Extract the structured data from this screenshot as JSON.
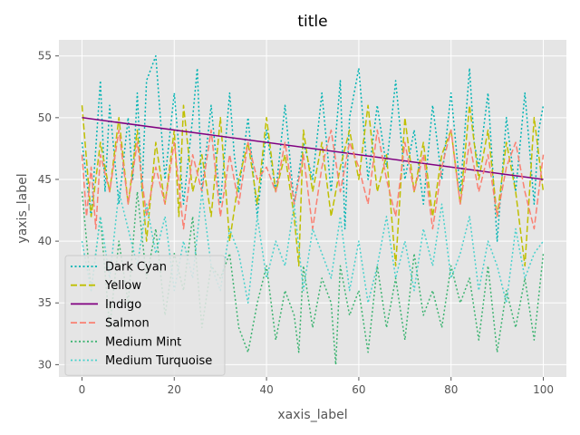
{
  "chart_data": {
    "type": "line",
    "title": "title",
    "xlabel": "xaxis_label",
    "ylabel": "yaxis_label",
    "xlim": [
      -5,
      105
    ],
    "ylim": [
      29,
      56.3
    ],
    "xticks": [
      0,
      20,
      40,
      60,
      80,
      100
    ],
    "yticks": [
      30,
      35,
      40,
      45,
      50,
      55
    ],
    "grid": true,
    "background": "#e5e5e5",
    "legend": {
      "position": "lower-left"
    },
    "series": [
      {
        "name": "Dark Cyan",
        "color": "#00b3b3",
        "dash": "dotted",
        "x": [
          0,
          2,
          4,
          5,
          6,
          8,
          10,
          11,
          12,
          13,
          14,
          16,
          18,
          20,
          22,
          24,
          25,
          26,
          28,
          30,
          32,
          33,
          34,
          36,
          38,
          40,
          42,
          44,
          46,
          48,
          50,
          52,
          54,
          56,
          57,
          58,
          60,
          62,
          64,
          66,
          68,
          70,
          72,
          74,
          76,
          78,
          80,
          82,
          84,
          85,
          86,
          88,
          90,
          92,
          94,
          96,
          98,
          99,
          100
        ],
        "y": [
          48,
          42,
          53,
          44,
          51,
          43,
          50,
          45,
          52,
          44,
          53,
          55,
          45,
          52,
          43,
          50,
          54,
          44,
          51,
          43,
          52,
          47,
          44,
          50,
          42,
          49,
          44,
          51,
          43,
          48,
          45,
          52,
          44,
          53,
          41,
          50,
          54,
          45,
          51,
          46,
          53,
          45,
          49,
          43,
          51,
          45,
          52,
          44,
          54,
          48,
          46,
          52,
          40,
          50,
          44,
          52,
          43,
          49,
          51
        ]
      },
      {
        "name": "Yellow",
        "color": "#bfbf00",
        "dash": "dashed",
        "x": [
          0,
          2,
          4,
          6,
          8,
          10,
          12,
          14,
          16,
          18,
          20,
          21,
          22,
          24,
          26,
          28,
          30,
          32,
          34,
          36,
          38,
          40,
          42,
          44,
          46,
          47,
          48,
          50,
          52,
          54,
          56,
          58,
          60,
          62,
          64,
          66,
          68,
          70,
          72,
          74,
          76,
          78,
          80,
          82,
          84,
          86,
          88,
          90,
          92,
          94,
          96,
          98,
          100
        ],
        "y": [
          51,
          42,
          48,
          44,
          50,
          43,
          49,
          40,
          48,
          43,
          49,
          42,
          51,
          44,
          47,
          42,
          50,
          40,
          45,
          48,
          43,
          50,
          44,
          47,
          42,
          38,
          49,
          44,
          48,
          42,
          46,
          49,
          45,
          51,
          44,
          47,
          38,
          50,
          44,
          48,
          42,
          47,
          49,
          43,
          51,
          45,
          49,
          42,
          48,
          44,
          38,
          50,
          44
        ]
      },
      {
        "name": "Indigo",
        "color": "#800080",
        "dash": "solid",
        "x": [
          0,
          100
        ],
        "y": [
          50,
          45
        ]
      },
      {
        "name": "Salmon",
        "color": "#fa8072",
        "dash": "dashed",
        "x": [
          0,
          1,
          2,
          3,
          4,
          6,
          8,
          10,
          12,
          14,
          16,
          18,
          20,
          22,
          24,
          26,
          28,
          30,
          32,
          34,
          36,
          38,
          40,
          42,
          44,
          46,
          48,
          50,
          52,
          54,
          56,
          58,
          60,
          62,
          64,
          66,
          68,
          70,
          72,
          74,
          76,
          78,
          80,
          82,
          84,
          86,
          88,
          90,
          92,
          94,
          96,
          98,
          100
        ],
        "y": [
          47,
          42,
          46,
          41,
          47,
          44,
          49,
          43,
          48,
          42,
          46,
          43,
          48,
          41,
          47,
          44,
          49,
          42,
          47,
          43,
          48,
          45,
          46,
          44,
          48,
          43,
          47,
          41,
          46,
          49,
          44,
          48,
          46,
          43,
          49,
          45,
          42,
          48,
          44,
          47,
          41,
          46,
          49,
          43,
          48,
          44,
          47,
          42,
          46,
          48,
          44,
          41,
          47
        ]
      },
      {
        "name": "Medium Mint",
        "color": "#3cb371",
        "dash": "dotted",
        "x": [
          0,
          2,
          4,
          6,
          8,
          10,
          12,
          14,
          16,
          18,
          20,
          22,
          24,
          26,
          28,
          30,
          32,
          34,
          36,
          38,
          40,
          42,
          44,
          46,
          47,
          48,
          50,
          52,
          54,
          55,
          56,
          58,
          60,
          62,
          64,
          66,
          68,
          70,
          72,
          74,
          76,
          78,
          80,
          82,
          84,
          86,
          88,
          90,
          92,
          94,
          96,
          98,
          100
        ],
        "y": [
          44,
          36,
          42,
          33,
          40,
          35,
          44,
          37,
          41,
          34,
          39,
          36,
          42,
          33,
          38,
          37,
          39,
          33,
          31,
          35,
          38,
          32,
          36,
          34,
          31,
          38,
          33,
          37,
          35,
          30,
          38,
          34,
          36,
          31,
          38,
          33,
          37,
          32,
          39,
          34,
          36,
          33,
          38,
          35,
          37,
          32,
          38,
          31,
          36,
          33,
          37,
          32,
          39
        ]
      },
      {
        "name": "Medium Turquoise",
        "color": "#48d1cc",
        "dash": "dotted",
        "x": [
          0,
          2,
          4,
          6,
          8,
          10,
          12,
          14,
          16,
          18,
          20,
          22,
          24,
          26,
          28,
          30,
          32,
          34,
          36,
          38,
          40,
          42,
          44,
          46,
          48,
          50,
          52,
          54,
          56,
          58,
          60,
          62,
          64,
          66,
          68,
          70,
          72,
          74,
          76,
          78,
          80,
          82,
          84,
          86,
          88,
          90,
          92,
          94,
          96,
          98,
          100
        ],
        "y": [
          40,
          36,
          42,
          37,
          44,
          41,
          38,
          43,
          39,
          42,
          36,
          40,
          37,
          44,
          38,
          36,
          41,
          39,
          35,
          42,
          37,
          40,
          38,
          43,
          36,
          41,
          39,
          37,
          42,
          36,
          40,
          35,
          38,
          42,
          37,
          40,
          36,
          41,
          38,
          43,
          37,
          39,
          42,
          36,
          40,
          38,
          35,
          41,
          37,
          39,
          40
        ]
      }
    ]
  }
}
